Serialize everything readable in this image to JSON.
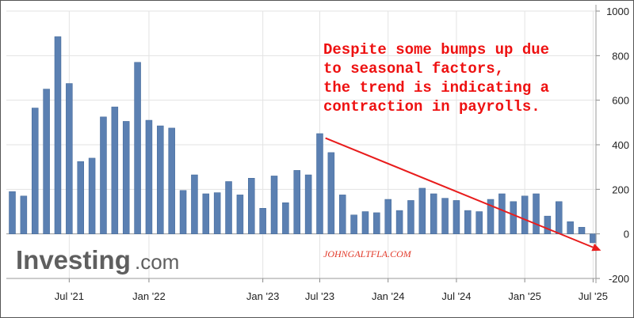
{
  "chart_data": {
    "type": "bar",
    "title": "",
    "xlabel": "",
    "ylabel": "",
    "ylim": [
      -200,
      1000
    ],
    "yticks": [
      -200,
      0,
      200,
      400,
      600,
      800,
      1000
    ],
    "x_tick_labels": [
      "Jul '21",
      "Jan '22",
      "Jan '23",
      "Jul '23",
      "Jan '24",
      "Jul '24",
      "Jan '25",
      "Jul '25"
    ],
    "values": [
      190,
      170,
      565,
      650,
      885,
      675,
      325,
      340,
      525,
      570,
      505,
      770,
      510,
      485,
      475,
      195,
      265,
      180,
      185,
      235,
      175,
      250,
      115,
      260,
      140,
      285,
      265,
      450,
      365,
      175,
      85,
      100,
      95,
      155,
      105,
      150,
      205,
      180,
      160,
      150,
      105,
      100,
      155,
      180,
      145,
      170,
      180,
      80,
      145,
      55,
      30,
      -40
    ],
    "bar_color": "#5b80b2",
    "grid": true,
    "axis_side": "right",
    "trend_arrow": {
      "from": {
        "index": 27.5,
        "value": 430
      },
      "to": {
        "index": 51.7,
        "value": -75
      },
      "color": "#e81c1c"
    },
    "annotation_lines": [
      "Despite some bumps up due",
      "to seasonal factors,",
      "the trend is indicating a",
      "contraction in payrolls."
    ],
    "watermark": "JOHNGALTFLA.COM",
    "logo": {
      "main": "Investing",
      "suffix": ".com"
    }
  }
}
